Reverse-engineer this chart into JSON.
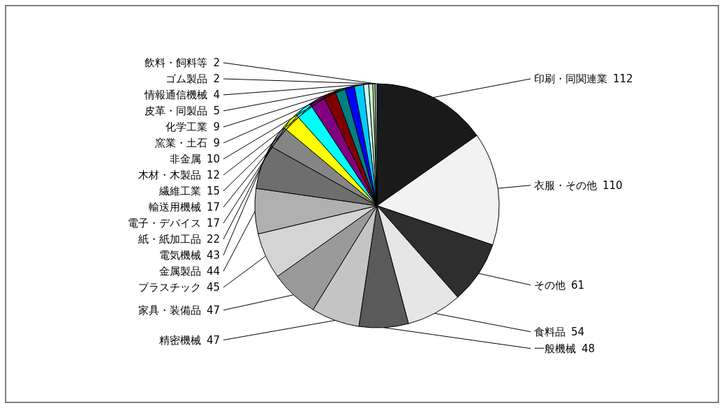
{
  "chart_data": {
    "type": "pie",
    "data_labels": true,
    "legend": false,
    "categories": [
      "印刷・同関連業",
      "衣服・その他",
      "その他",
      "食料品",
      "一般機械",
      "精密機械",
      "家具・装備品",
      "プラスチック",
      "金属製品",
      "電気機械",
      "紙・紙加工品",
      "電子・デバイス",
      "輸送用機械",
      "繊維工業",
      "木材・木製品",
      "非金属",
      "窯業・土石",
      "化学工業",
      "皮革・同製品",
      "情報通信機械",
      "ゴム製品",
      "飲料・飼料等"
    ],
    "values": [
      112,
      110,
      61,
      54,
      48,
      47,
      47,
      45,
      44,
      43,
      22,
      17,
      17,
      15,
      12,
      10,
      9,
      9,
      5,
      4,
      2,
      2
    ],
    "colors": [
      "#1a1a1a",
      "#f2f2f2",
      "#2e2e2e",
      "#e6e6e6",
      "#5a5a5a",
      "#c4c4c4",
      "#9a9a9a",
      "#d4d4d4",
      "#b0b0b0",
      "#6e6e6e",
      "#858585",
      "#ffff00",
      "#00ffff",
      "#800080",
      "#800000",
      "#008080",
      "#0000ff",
      "#00ccff",
      "#ccffff",
      "#ccffcc",
      "#ffff99",
      "#99ccff"
    ]
  }
}
